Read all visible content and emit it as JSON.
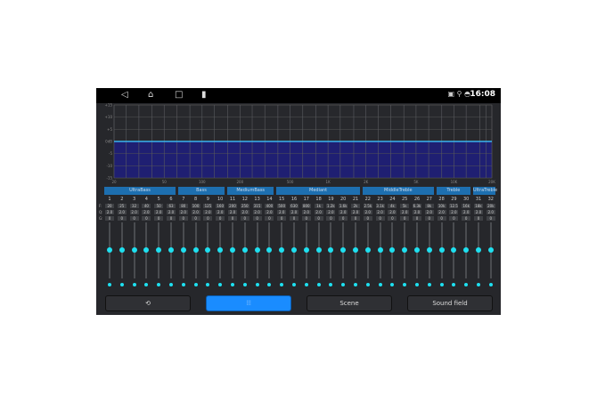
{
  "status_bar": {
    "time": "16:08",
    "icons": [
      "back-icon",
      "home-icon",
      "recents-icon",
      "battery-icon",
      "no-sim-icon",
      "location-icon",
      "gamepad-icon"
    ]
  },
  "chart_data": {
    "type": "area",
    "y_tick_labels": [
      "+15",
      "+10",
      "+5",
      "0dB",
      "-5",
      "-10",
      "-15"
    ],
    "ylim": [
      -15,
      15
    ],
    "x_tick_labels": [
      "20",
      "50",
      "100",
      "200",
      "500",
      "1K",
      "2K",
      "5K",
      "10K",
      "20K"
    ],
    "x_tick_values": [
      20,
      50,
      100,
      200,
      500,
      1000,
      2000,
      5000,
      10000,
      20000
    ],
    "xscale": "log",
    "xlim": [
      20,
      20000
    ],
    "level_db": 0,
    "fill_color": "#1f1f72",
    "line_color": "#3ab4f0"
  },
  "groups": [
    {
      "label": "UltraBass",
      "from": 1,
      "to": 6
    },
    {
      "label": "Bass",
      "from": 7,
      "to": 10
    },
    {
      "label": "MediumBass",
      "from": 11,
      "to": 14
    },
    {
      "label": "Mediant",
      "from": 15,
      "to": 21
    },
    {
      "label": "MiddleTreble",
      "from": 22,
      "to": 27
    },
    {
      "label": "Treble",
      "from": 28,
      "to": 30
    },
    {
      "label": "UltraTreble",
      "from": 31,
      "to": 32
    }
  ],
  "row_labels": {
    "f": "F:",
    "q": "Q:",
    "g": "G:"
  },
  "bands": {
    "freqs": [
      "20",
      "25",
      "32",
      "40",
      "50",
      "63",
      "80",
      "100",
      "125",
      "160",
      "200",
      "250",
      "315",
      "400",
      "500",
      "630",
      "800",
      "1k",
      "1.2k",
      "1.6k",
      "2k",
      "2.5k",
      "3.1k",
      "4k",
      "5k",
      "6.3k",
      "8k",
      "10k",
      "12.5",
      "16k",
      "18k",
      "20k"
    ],
    "q": "2.0",
    "gain": "0"
  },
  "buttons": {
    "reset_icon": "reset-icon",
    "eq_icon": "equalizer-icon",
    "scene": "Scene",
    "sound_field": "Sound field",
    "active_color": "#1a8cff"
  }
}
